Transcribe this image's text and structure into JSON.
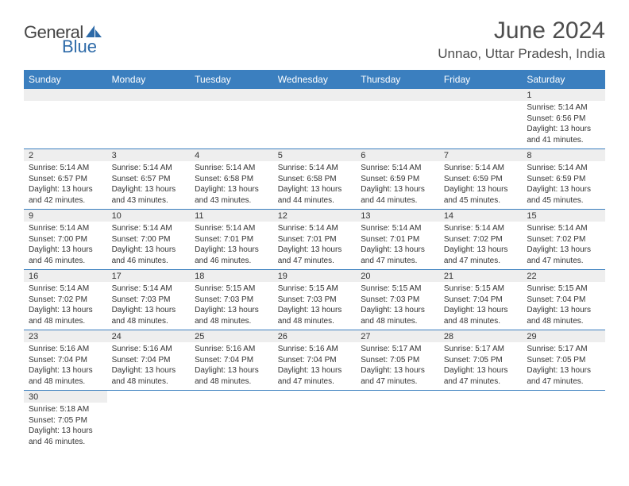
{
  "logo": {
    "general": "General",
    "blue": "Blue"
  },
  "title": "June 2024",
  "location": "Unnao, Uttar Pradesh, India",
  "colors": {
    "header_bg": "#3b7fbf",
    "header_fg": "#ffffff",
    "daynum_bg": "#eeeeee",
    "cell_border": "#3b7fbf",
    "text": "#333333",
    "logo_blue": "#2d6aa8"
  },
  "weekdays": [
    "Sunday",
    "Monday",
    "Tuesday",
    "Wednesday",
    "Thursday",
    "Friday",
    "Saturday"
  ],
  "weeks": [
    [
      null,
      null,
      null,
      null,
      null,
      null,
      {
        "n": "1",
        "sunrise": "Sunrise: 5:14 AM",
        "sunset": "Sunset: 6:56 PM",
        "day1": "Daylight: 13 hours",
        "day2": "and 41 minutes."
      }
    ],
    [
      {
        "n": "2",
        "sunrise": "Sunrise: 5:14 AM",
        "sunset": "Sunset: 6:57 PM",
        "day1": "Daylight: 13 hours",
        "day2": "and 42 minutes."
      },
      {
        "n": "3",
        "sunrise": "Sunrise: 5:14 AM",
        "sunset": "Sunset: 6:57 PM",
        "day1": "Daylight: 13 hours",
        "day2": "and 43 minutes."
      },
      {
        "n": "4",
        "sunrise": "Sunrise: 5:14 AM",
        "sunset": "Sunset: 6:58 PM",
        "day1": "Daylight: 13 hours",
        "day2": "and 43 minutes."
      },
      {
        "n": "5",
        "sunrise": "Sunrise: 5:14 AM",
        "sunset": "Sunset: 6:58 PM",
        "day1": "Daylight: 13 hours",
        "day2": "and 44 minutes."
      },
      {
        "n": "6",
        "sunrise": "Sunrise: 5:14 AM",
        "sunset": "Sunset: 6:59 PM",
        "day1": "Daylight: 13 hours",
        "day2": "and 44 minutes."
      },
      {
        "n": "7",
        "sunrise": "Sunrise: 5:14 AM",
        "sunset": "Sunset: 6:59 PM",
        "day1": "Daylight: 13 hours",
        "day2": "and 45 minutes."
      },
      {
        "n": "8",
        "sunrise": "Sunrise: 5:14 AM",
        "sunset": "Sunset: 6:59 PM",
        "day1": "Daylight: 13 hours",
        "day2": "and 45 minutes."
      }
    ],
    [
      {
        "n": "9",
        "sunrise": "Sunrise: 5:14 AM",
        "sunset": "Sunset: 7:00 PM",
        "day1": "Daylight: 13 hours",
        "day2": "and 46 minutes."
      },
      {
        "n": "10",
        "sunrise": "Sunrise: 5:14 AM",
        "sunset": "Sunset: 7:00 PM",
        "day1": "Daylight: 13 hours",
        "day2": "and 46 minutes."
      },
      {
        "n": "11",
        "sunrise": "Sunrise: 5:14 AM",
        "sunset": "Sunset: 7:01 PM",
        "day1": "Daylight: 13 hours",
        "day2": "and 46 minutes."
      },
      {
        "n": "12",
        "sunrise": "Sunrise: 5:14 AM",
        "sunset": "Sunset: 7:01 PM",
        "day1": "Daylight: 13 hours",
        "day2": "and 47 minutes."
      },
      {
        "n": "13",
        "sunrise": "Sunrise: 5:14 AM",
        "sunset": "Sunset: 7:01 PM",
        "day1": "Daylight: 13 hours",
        "day2": "and 47 minutes."
      },
      {
        "n": "14",
        "sunrise": "Sunrise: 5:14 AM",
        "sunset": "Sunset: 7:02 PM",
        "day1": "Daylight: 13 hours",
        "day2": "and 47 minutes."
      },
      {
        "n": "15",
        "sunrise": "Sunrise: 5:14 AM",
        "sunset": "Sunset: 7:02 PM",
        "day1": "Daylight: 13 hours",
        "day2": "and 47 minutes."
      }
    ],
    [
      {
        "n": "16",
        "sunrise": "Sunrise: 5:14 AM",
        "sunset": "Sunset: 7:02 PM",
        "day1": "Daylight: 13 hours",
        "day2": "and 48 minutes."
      },
      {
        "n": "17",
        "sunrise": "Sunrise: 5:14 AM",
        "sunset": "Sunset: 7:03 PM",
        "day1": "Daylight: 13 hours",
        "day2": "and 48 minutes."
      },
      {
        "n": "18",
        "sunrise": "Sunrise: 5:15 AM",
        "sunset": "Sunset: 7:03 PM",
        "day1": "Daylight: 13 hours",
        "day2": "and 48 minutes."
      },
      {
        "n": "19",
        "sunrise": "Sunrise: 5:15 AM",
        "sunset": "Sunset: 7:03 PM",
        "day1": "Daylight: 13 hours",
        "day2": "and 48 minutes."
      },
      {
        "n": "20",
        "sunrise": "Sunrise: 5:15 AM",
        "sunset": "Sunset: 7:03 PM",
        "day1": "Daylight: 13 hours",
        "day2": "and 48 minutes."
      },
      {
        "n": "21",
        "sunrise": "Sunrise: 5:15 AM",
        "sunset": "Sunset: 7:04 PM",
        "day1": "Daylight: 13 hours",
        "day2": "and 48 minutes."
      },
      {
        "n": "22",
        "sunrise": "Sunrise: 5:15 AM",
        "sunset": "Sunset: 7:04 PM",
        "day1": "Daylight: 13 hours",
        "day2": "and 48 minutes."
      }
    ],
    [
      {
        "n": "23",
        "sunrise": "Sunrise: 5:16 AM",
        "sunset": "Sunset: 7:04 PM",
        "day1": "Daylight: 13 hours",
        "day2": "and 48 minutes."
      },
      {
        "n": "24",
        "sunrise": "Sunrise: 5:16 AM",
        "sunset": "Sunset: 7:04 PM",
        "day1": "Daylight: 13 hours",
        "day2": "and 48 minutes."
      },
      {
        "n": "25",
        "sunrise": "Sunrise: 5:16 AM",
        "sunset": "Sunset: 7:04 PM",
        "day1": "Daylight: 13 hours",
        "day2": "and 48 minutes."
      },
      {
        "n": "26",
        "sunrise": "Sunrise: 5:16 AM",
        "sunset": "Sunset: 7:04 PM",
        "day1": "Daylight: 13 hours",
        "day2": "and 47 minutes."
      },
      {
        "n": "27",
        "sunrise": "Sunrise: 5:17 AM",
        "sunset": "Sunset: 7:05 PM",
        "day1": "Daylight: 13 hours",
        "day2": "and 47 minutes."
      },
      {
        "n": "28",
        "sunrise": "Sunrise: 5:17 AM",
        "sunset": "Sunset: 7:05 PM",
        "day1": "Daylight: 13 hours",
        "day2": "and 47 minutes."
      },
      {
        "n": "29",
        "sunrise": "Sunrise: 5:17 AM",
        "sunset": "Sunset: 7:05 PM",
        "day1": "Daylight: 13 hours",
        "day2": "and 47 minutes."
      }
    ],
    [
      {
        "n": "30",
        "sunrise": "Sunrise: 5:18 AM",
        "sunset": "Sunset: 7:05 PM",
        "day1": "Daylight: 13 hours",
        "day2": "and 46 minutes."
      },
      null,
      null,
      null,
      null,
      null,
      null
    ]
  ]
}
